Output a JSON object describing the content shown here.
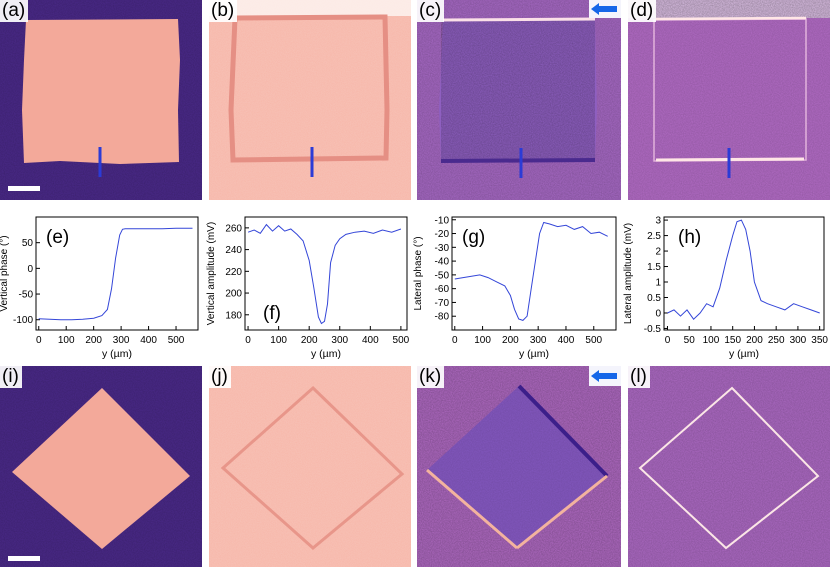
{
  "figure": {
    "panel_labels": {
      "a": "(a)",
      "b": "(b)",
      "c": "(c)",
      "d": "(d)",
      "e": "(e)",
      "f": "(f)",
      "g": "(g)",
      "h": "(h)",
      "i": "(i)",
      "j": "(j)",
      "k": "(k)",
      "l": "(l)"
    },
    "colors": {
      "background_purple": "#4b2a8a",
      "pink": "#f3a99a",
      "light_pink": "#f6b4a6",
      "magenta": "#b462c0",
      "line_blue": "#2b3bd6",
      "arrow_blue": "#1566e8"
    },
    "icons": [
      "scale-bar",
      "blue-arrow-icon"
    ]
  },
  "chart_data": [
    {
      "id": "e",
      "type": "line",
      "xlabel": "y (µm)",
      "ylabel": "Vertical phase (°)",
      "xlim": [
        -10,
        580
      ],
      "ylim": [
        -120,
        100
      ],
      "xticks": [
        0,
        100,
        200,
        300,
        400,
        500
      ],
      "yticks": [
        -100,
        -50,
        0,
        50
      ],
      "x": [
        0,
        40,
        80,
        120,
        160,
        200,
        230,
        250,
        265,
        280,
        295,
        305,
        315,
        330,
        360,
        400,
        450,
        500,
        560
      ],
      "y": [
        -98,
        -99,
        -100,
        -100,
        -99,
        -97,
        -92,
        -80,
        -40,
        20,
        65,
        76,
        77,
        77,
        77,
        77,
        77,
        78,
        78
      ]
    },
    {
      "id": "f",
      "type": "line",
      "xlabel": "y (µm)",
      "ylabel": "Vertical amplitude (mV)",
      "xlim": [
        -10,
        520
      ],
      "ylim": [
        166,
        270
      ],
      "xticks": [
        0,
        100,
        200,
        300,
        400,
        500
      ],
      "yticks": [
        180,
        200,
        220,
        240,
        260
      ],
      "x": [
        0,
        20,
        40,
        60,
        80,
        100,
        120,
        140,
        160,
        180,
        200,
        215,
        230,
        240,
        250,
        260,
        270,
        285,
        300,
        320,
        350,
        380,
        410,
        440,
        470,
        500
      ],
      "y": [
        256,
        258,
        255,
        263,
        257,
        262,
        257,
        259,
        254,
        248,
        230,
        205,
        178,
        172,
        174,
        190,
        228,
        244,
        250,
        254,
        256,
        257,
        255,
        258,
        256,
        259
      ]
    },
    {
      "id": "g",
      "type": "line",
      "xlabel": "y (µm)",
      "ylabel": "Lateral phase (°)",
      "xlim": [
        -10,
        580
      ],
      "ylim": [
        -90,
        -8
      ],
      "xticks": [
        0,
        100,
        200,
        300,
        400,
        500
      ],
      "yticks": [
        -80,
        -70,
        -60,
        -50,
        -40,
        -30,
        -20,
        -10
      ],
      "x": [
        0,
        30,
        60,
        90,
        120,
        150,
        180,
        200,
        215,
        230,
        245,
        260,
        275,
        290,
        305,
        320,
        340,
        370,
        400,
        430,
        460,
        490,
        520,
        550
      ],
      "y": [
        -53,
        -52,
        -51,
        -50,
        -52,
        -55,
        -58,
        -65,
        -75,
        -82,
        -83,
        -80,
        -60,
        -40,
        -20,
        -12,
        -13,
        -15,
        -14,
        -17,
        -15,
        -20,
        -19,
        -22
      ]
    },
    {
      "id": "h",
      "type": "line",
      "xlabel": "y (µm)",
      "ylabel": "Lateral amplitude (mV)",
      "xlim": [
        -8,
        360
      ],
      "ylim": [
        -0.55,
        3.1
      ],
      "xticks": [
        0,
        50,
        100,
        150,
        200,
        250,
        300,
        350
      ],
      "yticks": [
        -0.5,
        0,
        0.5,
        1,
        1.5,
        2,
        2.5,
        3
      ],
      "x": [
        0,
        15,
        30,
        45,
        60,
        75,
        90,
        105,
        120,
        135,
        150,
        160,
        170,
        180,
        190,
        200,
        215,
        230,
        250,
        270,
        290,
        310,
        330,
        350
      ],
      "y": [
        0.0,
        0.1,
        -0.1,
        0.1,
        -0.2,
        0.0,
        0.3,
        0.2,
        0.8,
        1.7,
        2.5,
        2.95,
        3.0,
        2.7,
        2.0,
        1.0,
        0.4,
        0.3,
        0.2,
        0.1,
        0.3,
        0.2,
        0.1,
        0.0
      ]
    }
  ]
}
